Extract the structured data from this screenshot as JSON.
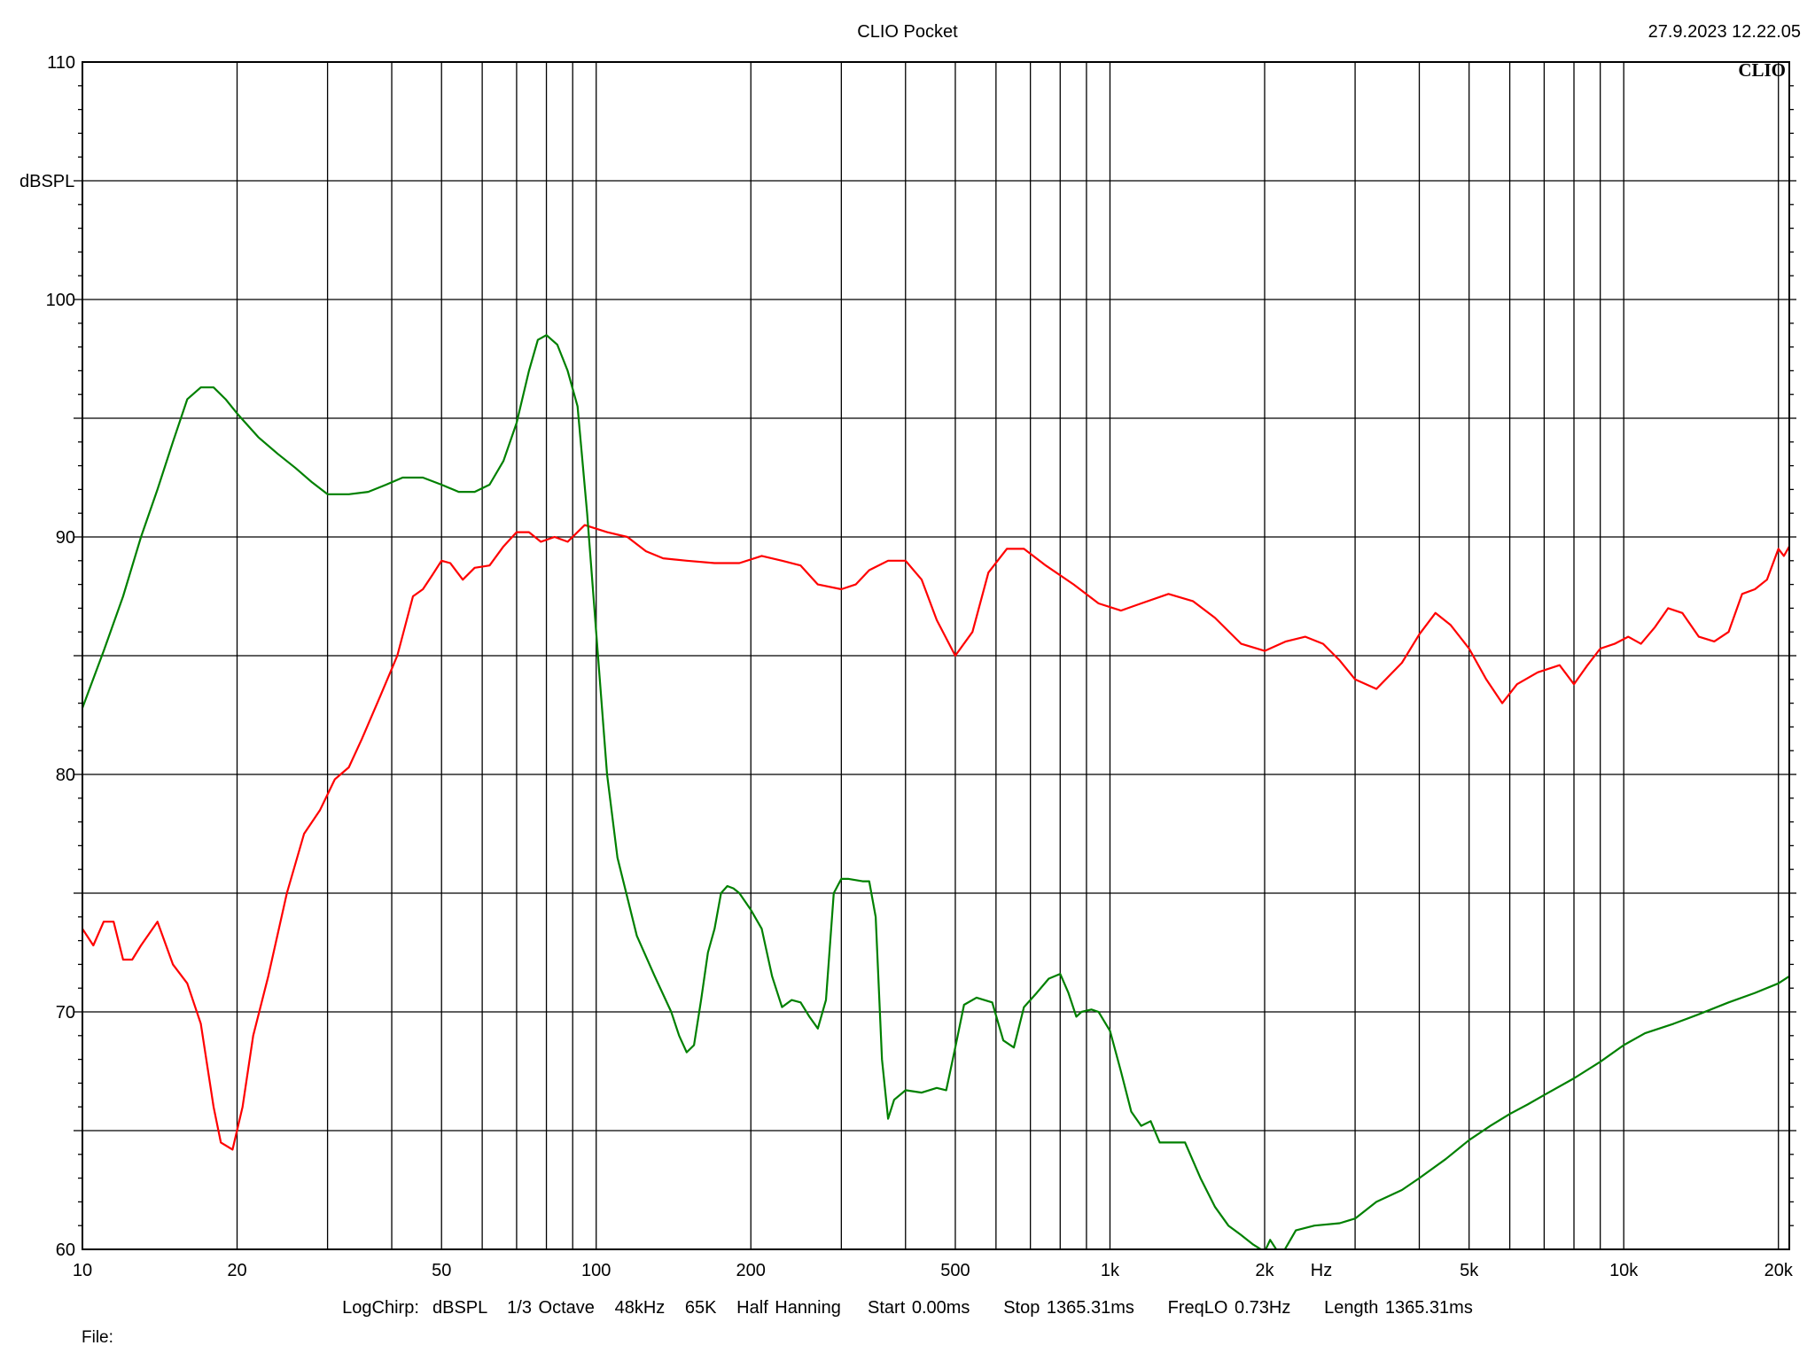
{
  "header": {
    "title": "CLIO Pocket",
    "timestamp": "27.9.2023 12.22.05"
  },
  "footer": {
    "settings": "LogChirp:  dBSPL   1/3 Octave   48kHz   65K   Half Hanning    Start 0.00ms     Stop 1365.31ms     FreqLO 0.73Hz     Length 1365.31ms",
    "file_label": "File:"
  },
  "chart_data": {
    "type": "line",
    "title": "",
    "brand_mark": "CLIO",
    "xlabel": "Hz",
    "ylabel": "dBSPL",
    "xscale": "log",
    "xlim": [
      10,
      21000
    ],
    "ylim": [
      60,
      110
    ],
    "x_ticks": [
      {
        "value": 10,
        "label": "10"
      },
      {
        "value": 20,
        "label": "20"
      },
      {
        "value": 50,
        "label": "50"
      },
      {
        "value": 100,
        "label": "100"
      },
      {
        "value": 200,
        "label": "200"
      },
      {
        "value": 500,
        "label": "500"
      },
      {
        "value": 1000,
        "label": "1k"
      },
      {
        "value": 2000,
        "label": "2k"
      },
      {
        "value": 5000,
        "label": "5k"
      },
      {
        "value": 10000,
        "label": "10k"
      },
      {
        "value": 20000,
        "label": "20k"
      }
    ],
    "y_ticks": [
      {
        "value": 60,
        "label": "60"
      },
      {
        "value": 70,
        "label": "70"
      },
      {
        "value": 80,
        "label": "80"
      },
      {
        "value": 90,
        "label": "90"
      },
      {
        "value": 100,
        "label": "100"
      },
      {
        "value": 110,
        "label": "110"
      }
    ],
    "grid": true,
    "legend": "none",
    "series": [
      {
        "color": "#ff0000",
        "points": [
          [
            10,
            73.5
          ],
          [
            10.5,
            72.8
          ],
          [
            11,
            73.8
          ],
          [
            11.5,
            73.8
          ],
          [
            12,
            72.2
          ],
          [
            12.5,
            72.2
          ],
          [
            13,
            72.8
          ],
          [
            14,
            73.8
          ],
          [
            15,
            72
          ],
          [
            16,
            71.2
          ],
          [
            17,
            69.5
          ],
          [
            18,
            66
          ],
          [
            18.6,
            64.5
          ],
          [
            19.6,
            64.2
          ],
          [
            20.5,
            66
          ],
          [
            21.5,
            69
          ],
          [
            23,
            71.5
          ],
          [
            25,
            75
          ],
          [
            27,
            77.5
          ],
          [
            29,
            78.5
          ],
          [
            31,
            79.8
          ],
          [
            33,
            80.3
          ],
          [
            35,
            81.5
          ],
          [
            38,
            83.3
          ],
          [
            41,
            85
          ],
          [
            44,
            87.5
          ],
          [
            46,
            87.8
          ],
          [
            48,
            88.4
          ],
          [
            50,
            89
          ],
          [
            52,
            88.9
          ],
          [
            55,
            88.2
          ],
          [
            58,
            88.7
          ],
          [
            62,
            88.8
          ],
          [
            66,
            89.6
          ],
          [
            70,
            90.2
          ],
          [
            74,
            90.2
          ],
          [
            78,
            89.8
          ],
          [
            83,
            90
          ],
          [
            88,
            89.8
          ],
          [
            95,
            90.5
          ],
          [
            105,
            90.2
          ],
          [
            115,
            90
          ],
          [
            125,
            89.4
          ],
          [
            135,
            89.1
          ],
          [
            150,
            89
          ],
          [
            170,
            88.9
          ],
          [
            190,
            88.9
          ],
          [
            210,
            89.2
          ],
          [
            230,
            89
          ],
          [
            250,
            88.8
          ],
          [
            270,
            88
          ],
          [
            300,
            87.8
          ],
          [
            320,
            88
          ],
          [
            340,
            88.6
          ],
          [
            370,
            89
          ],
          [
            400,
            89
          ],
          [
            430,
            88.2
          ],
          [
            460,
            86.5
          ],
          [
            500,
            85
          ],
          [
            540,
            86
          ],
          [
            580,
            88.5
          ],
          [
            630,
            89.5
          ],
          [
            680,
            89.5
          ],
          [
            750,
            88.8
          ],
          [
            850,
            88
          ],
          [
            950,
            87.2
          ],
          [
            1050,
            86.9
          ],
          [
            1150,
            87.2
          ],
          [
            1300,
            87.6
          ],
          [
            1450,
            87.3
          ],
          [
            1600,
            86.6
          ],
          [
            1800,
            85.5
          ],
          [
            2000,
            85.2
          ],
          [
            2200,
            85.6
          ],
          [
            2400,
            85.8
          ],
          [
            2600,
            85.5
          ],
          [
            2800,
            84.8
          ],
          [
            3000,
            84
          ],
          [
            3300,
            83.6
          ],
          [
            3700,
            84.7
          ],
          [
            4000,
            85.9
          ],
          [
            4300,
            86.8
          ],
          [
            4600,
            86.3
          ],
          [
            5000,
            85.3
          ],
          [
            5400,
            84
          ],
          [
            5800,
            83
          ],
          [
            6200,
            83.8
          ],
          [
            6800,
            84.3
          ],
          [
            7500,
            84.6
          ],
          [
            8000,
            83.8
          ],
          [
            8500,
            84.6
          ],
          [
            9000,
            85.3
          ],
          [
            9600,
            85.5
          ],
          [
            10200,
            85.8
          ],
          [
            10800,
            85.5
          ],
          [
            11500,
            86.2
          ],
          [
            12200,
            87
          ],
          [
            13000,
            86.8
          ],
          [
            14000,
            85.8
          ],
          [
            15000,
            85.6
          ],
          [
            16000,
            86
          ],
          [
            17000,
            87.6
          ],
          [
            18000,
            87.8
          ],
          [
            19000,
            88.2
          ],
          [
            20000,
            89.5
          ],
          [
            20500,
            89.2
          ],
          [
            21000,
            89.6
          ]
        ]
      },
      {
        "color": "#008000",
        "points": [
          [
            10,
            82.8
          ],
          [
            11,
            85.2
          ],
          [
            12,
            87.5
          ],
          [
            13,
            90
          ],
          [
            14,
            92
          ],
          [
            15,
            94
          ],
          [
            16,
            95.8
          ],
          [
            17,
            96.3
          ],
          [
            18,
            96.3
          ],
          [
            19,
            95.8
          ],
          [
            20,
            95.2
          ],
          [
            22,
            94.2
          ],
          [
            24,
            93.5
          ],
          [
            26,
            92.9
          ],
          [
            28,
            92.3
          ],
          [
            30,
            91.8
          ],
          [
            33,
            91.8
          ],
          [
            36,
            91.9
          ],
          [
            39,
            92.2
          ],
          [
            42,
            92.5
          ],
          [
            46,
            92.5
          ],
          [
            50,
            92.2
          ],
          [
            54,
            91.9
          ],
          [
            58,
            91.9
          ],
          [
            62,
            92.2
          ],
          [
            66,
            93.2
          ],
          [
            70,
            94.8
          ],
          [
            74,
            97
          ],
          [
            77,
            98.3
          ],
          [
            80,
            98.5
          ],
          [
            84,
            98.1
          ],
          [
            88,
            97
          ],
          [
            92,
            95.5
          ],
          [
            96,
            91
          ],
          [
            100,
            86
          ],
          [
            105,
            80
          ],
          [
            110,
            76.5
          ],
          [
            120,
            73.2
          ],
          [
            130,
            71.5
          ],
          [
            140,
            70
          ],
          [
            145,
            69
          ],
          [
            150,
            68.3
          ],
          [
            155,
            68.6
          ],
          [
            160,
            70.5
          ],
          [
            165,
            72.5
          ],
          [
            170,
            73.5
          ],
          [
            175,
            75
          ],
          [
            180,
            75.3
          ],
          [
            185,
            75.2
          ],
          [
            190,
            75
          ],
          [
            200,
            74.3
          ],
          [
            210,
            73.5
          ],
          [
            220,
            71.5
          ],
          [
            230,
            70.2
          ],
          [
            240,
            70.5
          ],
          [
            250,
            70.4
          ],
          [
            260,
            69.8
          ],
          [
            270,
            69.3
          ],
          [
            280,
            70.5
          ],
          [
            290,
            75
          ],
          [
            300,
            75.6
          ],
          [
            310,
            75.6
          ],
          [
            330,
            75.5
          ],
          [
            340,
            75.5
          ],
          [
            350,
            74
          ],
          [
            360,
            68
          ],
          [
            370,
            65.5
          ],
          [
            380,
            66.3
          ],
          [
            400,
            66.7
          ],
          [
            430,
            66.6
          ],
          [
            460,
            66.8
          ],
          [
            480,
            66.7
          ],
          [
            500,
            68.5
          ],
          [
            520,
            70.3
          ],
          [
            550,
            70.6
          ],
          [
            590,
            70.4
          ],
          [
            620,
            68.8
          ],
          [
            650,
            68.5
          ],
          [
            680,
            70.2
          ],
          [
            720,
            70.8
          ],
          [
            760,
            71.4
          ],
          [
            800,
            71.6
          ],
          [
            830,
            70.8
          ],
          [
            860,
            69.8
          ],
          [
            880,
            70
          ],
          [
            920,
            70.1
          ],
          [
            950,
            70
          ],
          [
            1000,
            69.2
          ],
          [
            1050,
            67.5
          ],
          [
            1100,
            65.8
          ],
          [
            1150,
            65.2
          ],
          [
            1200,
            65.4
          ],
          [
            1250,
            64.5
          ],
          [
            1300,
            64.5
          ],
          [
            1400,
            64.5
          ],
          [
            1500,
            63
          ],
          [
            1600,
            61.8
          ],
          [
            1700,
            61
          ],
          [
            1800,
            60.6
          ],
          [
            1900,
            60.2
          ],
          [
            2000,
            59.9
          ],
          [
            2050,
            60.4
          ],
          [
            2150,
            59.7
          ],
          [
            2300,
            60.8
          ],
          [
            2500,
            61
          ],
          [
            2800,
            61.1
          ],
          [
            3000,
            61.3
          ],
          [
            3300,
            62
          ],
          [
            3700,
            62.5
          ],
          [
            4000,
            63
          ],
          [
            4500,
            63.8
          ],
          [
            5000,
            64.6
          ],
          [
            5500,
            65.2
          ],
          [
            6000,
            65.7
          ],
          [
            6500,
            66.1
          ],
          [
            7000,
            66.5
          ],
          [
            8000,
            67.2
          ],
          [
            9000,
            67.9
          ],
          [
            10000,
            68.6
          ],
          [
            11000,
            69.1
          ],
          [
            12500,
            69.5
          ],
          [
            14000,
            69.9
          ],
          [
            16000,
            70.4
          ],
          [
            18000,
            70.8
          ],
          [
            20000,
            71.2
          ],
          [
            21000,
            71.5
          ]
        ]
      }
    ]
  }
}
